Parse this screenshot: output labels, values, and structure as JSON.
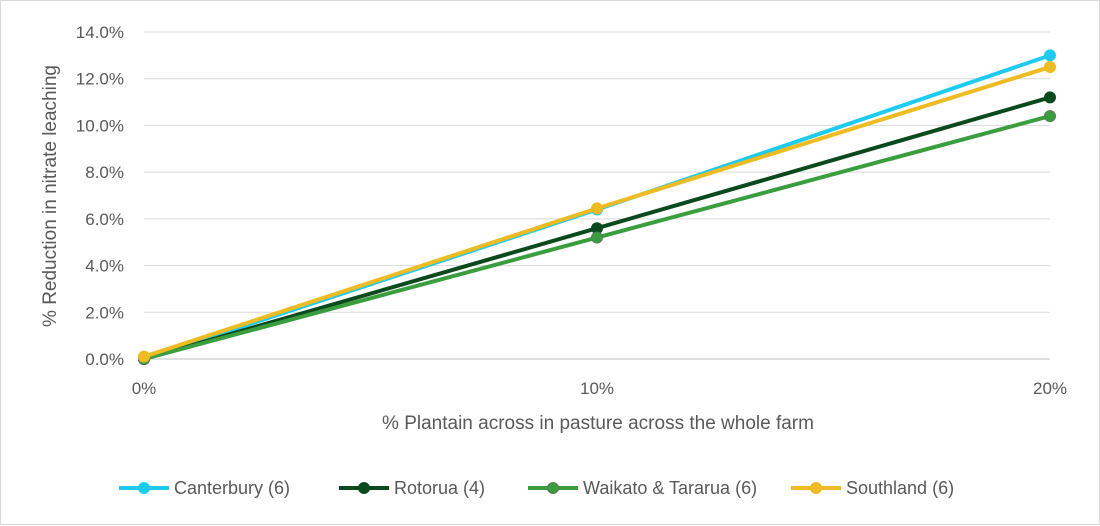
{
  "chart_data": {
    "type": "line",
    "title": "",
    "xlabel": "% Plantain across in pasture across the whole farm",
    "ylabel": "% Reduction in nitrate leaching",
    "categories": [
      "0%",
      "10%",
      "20%"
    ],
    "x": [
      0,
      10,
      20
    ],
    "ylim": [
      0,
      14
    ],
    "yticks": [
      "0.0%",
      "2.0%",
      "4.0%",
      "6.0%",
      "8.0%",
      "10.0%",
      "12.0%",
      "14.0%"
    ],
    "grid": true,
    "legend_position": "bottom",
    "series": [
      {
        "name": "Canterbury (6)",
        "values": [
          0.0,
          6.4,
          13.0
        ],
        "color": "#1ecbf0"
      },
      {
        "name": "Rotorua (4)",
        "values": [
          0.0,
          5.6,
          11.2
        ],
        "color": "#0b4a1c"
      },
      {
        "name": "Waikato & Tararua (6)",
        "values": [
          0.0,
          5.2,
          10.4
        ],
        "color": "#3a9e3e"
      },
      {
        "name": "Southland (6)",
        "values": [
          0.1,
          6.45,
          12.5
        ],
        "color": "#eebb22"
      }
    ]
  }
}
